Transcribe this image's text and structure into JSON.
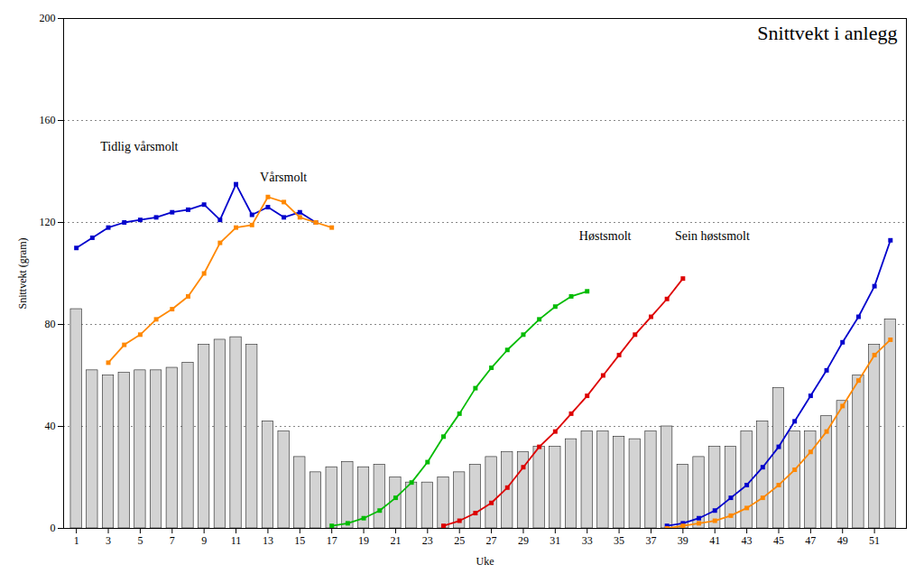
{
  "chart_data": {
    "type": "bar",
    "title": "Snittvekt i anlegg",
    "x_label": "Uke",
    "y_label": "Snittvekt (gram)",
    "xlim": [
      0.2,
      53
    ],
    "xticks": [
      1,
      3,
      5,
      7,
      9,
      11,
      13,
      15,
      17,
      19,
      21,
      23,
      25,
      27,
      29,
      31,
      33,
      35,
      37,
      39,
      41,
      43,
      45,
      47,
      49,
      51
    ],
    "ylim": [
      0,
      200
    ],
    "yticks": [
      0,
      40,
      80,
      120,
      160,
      200
    ],
    "grid": true,
    "series": [
      {
        "type": "bar",
        "color": "#d3d3d3",
        "x": [
          1,
          2,
          3,
          4,
          5,
          6,
          7,
          8,
          9,
          10,
          11,
          12,
          13,
          14,
          15,
          16,
          17,
          18,
          19,
          20,
          21,
          22,
          23,
          24,
          25,
          26,
          27,
          28,
          29,
          30,
          31,
          32,
          33,
          34,
          35,
          36,
          37,
          38,
          39,
          40,
          41,
          42,
          43,
          44,
          45,
          46,
          47,
          48,
          49,
          50,
          51,
          52
        ],
        "values": [
          86,
          62,
          60,
          61,
          62,
          62,
          63,
          65,
          72,
          74,
          75,
          72,
          42,
          38,
          28,
          22,
          24,
          26,
          24,
          25,
          20,
          18,
          18,
          20,
          22,
          25,
          28,
          30,
          30,
          32,
          32,
          35,
          38,
          38,
          36,
          35,
          38,
          40,
          25,
          28,
          32,
          32,
          38,
          42,
          55,
          38,
          38,
          44,
          50,
          60,
          72,
          82
        ]
      },
      {
        "type": "line",
        "name": "Tidlig vårsmolt",
        "color": "#0000cc",
        "marker": "square",
        "x": [
          1,
          2,
          3,
          4,
          5,
          6,
          7,
          8,
          9,
          10,
          11,
          12,
          13,
          14,
          15,
          16
        ],
        "values": [
          110,
          114,
          118,
          120,
          121,
          122,
          124,
          125,
          127,
          121,
          135,
          123,
          126,
          122,
          124,
          120
        ]
      },
      {
        "type": "line",
        "name": "Vårsmolt",
        "color": "#ff8800",
        "marker": "square",
        "x": [
          3,
          4,
          5,
          6,
          7,
          8,
          9,
          10,
          11,
          12,
          13,
          14,
          15,
          16,
          17
        ],
        "values": [
          65,
          72,
          76,
          82,
          86,
          91,
          100,
          112,
          118,
          119,
          130,
          128,
          122,
          120,
          118
        ]
      },
      {
        "type": "line",
        "name": "Høstsmolt",
        "color": "#00bb00",
        "marker": "square",
        "x": [
          17,
          18,
          19,
          20,
          21,
          22,
          23,
          24,
          25,
          26,
          27,
          28,
          29,
          30,
          31,
          32,
          33
        ],
        "values": [
          1,
          2,
          4,
          7,
          12,
          18,
          26,
          36,
          45,
          55,
          63,
          70,
          76,
          82,
          87,
          91,
          93
        ]
      },
      {
        "type": "line",
        "name": "Sein høstsmolt",
        "color": "#dd0000",
        "marker": "square",
        "x": [
          24,
          25,
          26,
          27,
          28,
          29,
          30,
          31,
          32,
          33,
          34,
          35,
          36,
          37,
          38,
          39
        ],
        "values": [
          1,
          3,
          6,
          10,
          16,
          24,
          32,
          38,
          45,
          52,
          60,
          68,
          76,
          83,
          90,
          98
        ]
      },
      {
        "type": "line",
        "color": "#0000cc",
        "marker": "square",
        "x": [
          38,
          39,
          40,
          41,
          42,
          43,
          44,
          45,
          46,
          47,
          48,
          49,
          50,
          51,
          52
        ],
        "values": [
          1,
          2,
          4,
          7,
          12,
          17,
          24,
          32,
          42,
          52,
          62,
          73,
          83,
          95,
          113
        ]
      },
      {
        "type": "line",
        "color": "#ff8800",
        "marker": "square",
        "x": [
          38,
          39,
          40,
          41,
          42,
          43,
          44,
          45,
          46,
          47,
          48,
          49,
          50,
          51,
          52
        ],
        "values": [
          0,
          1,
          2,
          3,
          5,
          8,
          12,
          17,
          23,
          30,
          38,
          48,
          58,
          68,
          74
        ]
      }
    ],
    "annotations": [
      {
        "text": "Tidlig vårsmolt",
        "x": 2.5,
        "y": 148
      },
      {
        "text": "Vårsmolt",
        "x": 12.5,
        "y": 136
      },
      {
        "text": "Høstsmolt",
        "x": 32.5,
        "y": 113
      },
      {
        "text": "Sein høstsmolt",
        "x": 38.5,
        "y": 113
      }
    ]
  }
}
